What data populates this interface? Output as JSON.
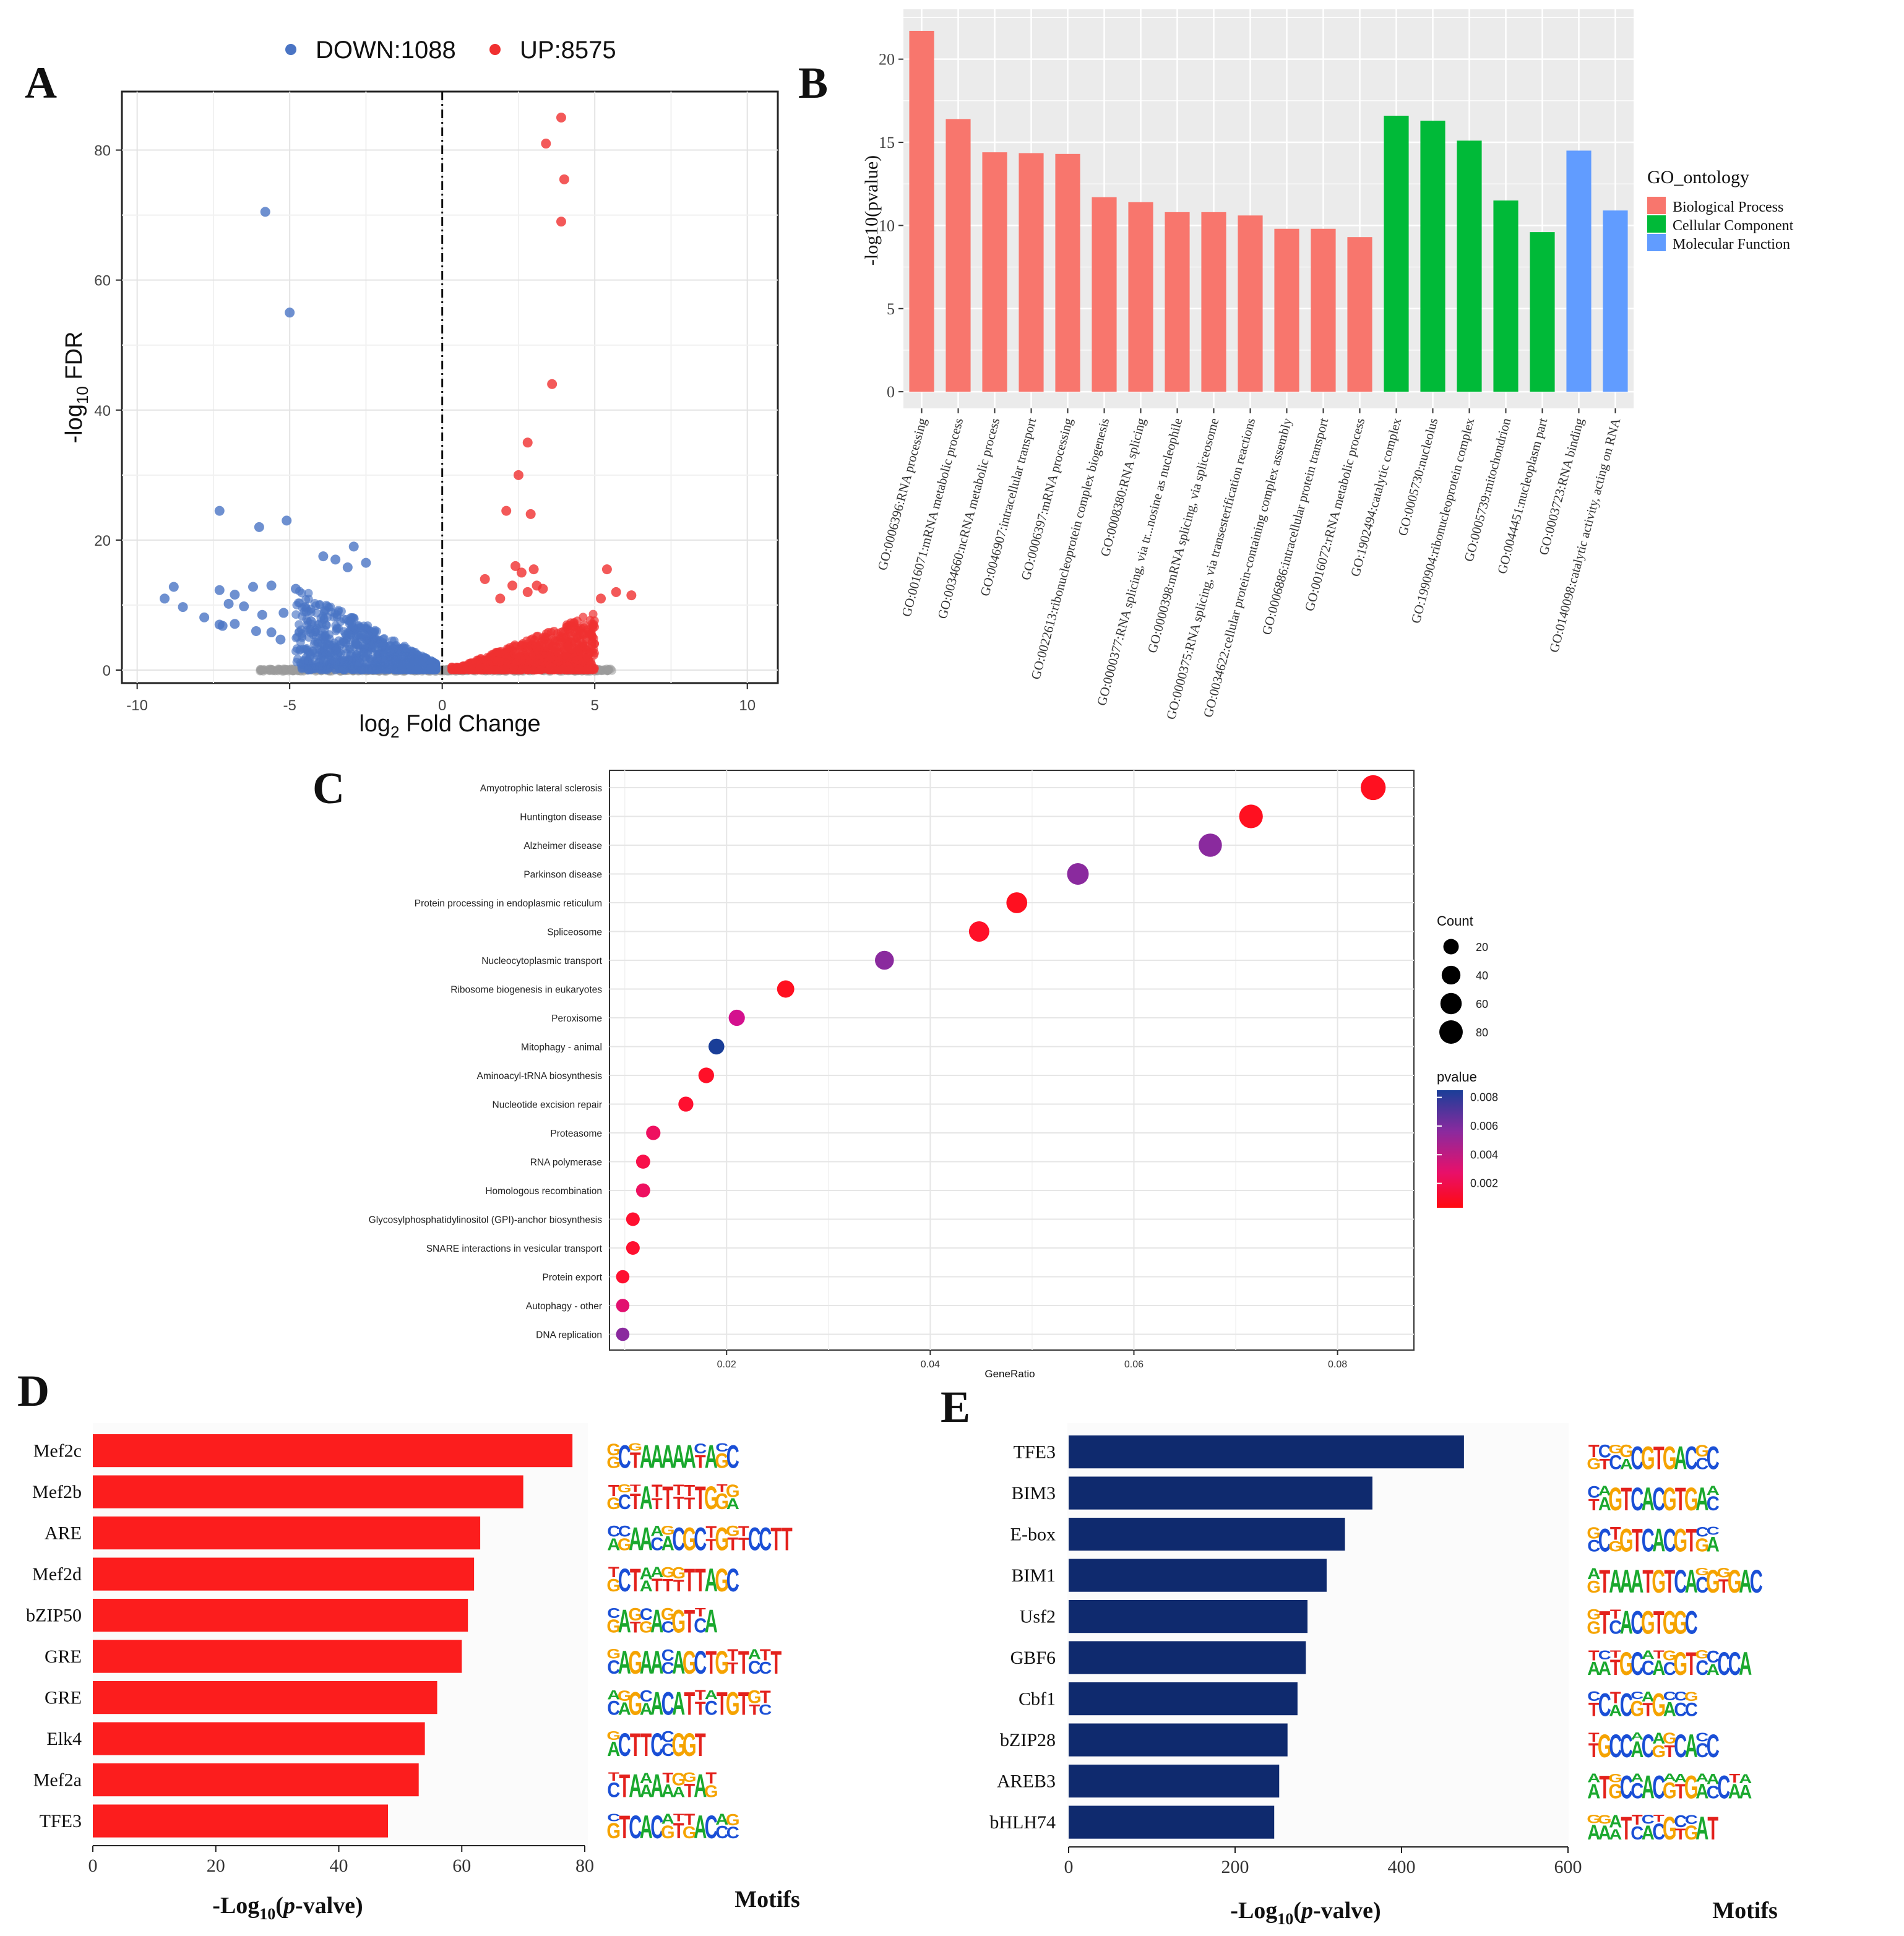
{
  "panels": {
    "A": {
      "letter": "A",
      "chart_data": {
        "type": "scatter",
        "title": "",
        "legend": [
          {
            "label": "DOWN:1088",
            "color": "#4a74c4"
          },
          {
            "label": "UP:8575",
            "color": "#f03030"
          }
        ],
        "xlabel_main": "log",
        "xlabel_sub": "2",
        "xlabel_rest": " Fold Change",
        "ylabel_main": "-log",
        "ylabel_sub": "10",
        "ylabel_rest": " FDR",
        "xlim": [
          -10.5,
          11
        ],
        "ylim": [
          -2,
          89
        ],
        "xticks": [
          -10,
          -5,
          0,
          5,
          10
        ],
        "xtick_labels": [
          "-10",
          "-5",
          "0",
          "5",
          "10"
        ],
        "yticks": [
          0,
          20,
          40,
          60,
          80
        ],
        "down_color": "#4a74c4",
        "up_color": "#f03030",
        "ns_color": "#9a9a9a",
        "highlight_up": [
          [
            3.9,
            85
          ],
          [
            3.4,
            81
          ],
          [
            4.0,
            75.5
          ],
          [
            3.9,
            69
          ],
          [
            3.6,
            44
          ],
          [
            2.8,
            35
          ],
          [
            2.5,
            30
          ],
          [
            2.9,
            24
          ],
          [
            2.1,
            24.5
          ],
          [
            2.4,
            16
          ],
          [
            3.0,
            15.5
          ],
          [
            2.6,
            15
          ],
          [
            5.4,
            15.5
          ],
          [
            1.4,
            14
          ],
          [
            3.1,
            13
          ],
          [
            2.3,
            13
          ],
          [
            5.7,
            12
          ],
          [
            6.2,
            11.5
          ],
          [
            3.3,
            12.5
          ],
          [
            2.8,
            12
          ],
          [
            1.9,
            11
          ],
          [
            5.2,
            11
          ]
        ],
        "highlight_down": [
          [
            -5.8,
            70.5
          ],
          [
            -5.0,
            55
          ],
          [
            -7.3,
            24.5
          ],
          [
            -6.0,
            22
          ],
          [
            -5.1,
            23
          ],
          [
            -2.9,
            19
          ],
          [
            -3.9,
            17.5
          ],
          [
            -3.5,
            17
          ],
          [
            -2.5,
            16.5
          ],
          [
            -3.1,
            15.8
          ],
          [
            -8.8,
            12.8
          ],
          [
            -7.3,
            12.3
          ],
          [
            -6.8,
            11.6
          ],
          [
            -6.2,
            12.8
          ],
          [
            -5.6,
            13
          ],
          [
            -4.8,
            12.5
          ],
          [
            -9.1,
            11
          ],
          [
            -8.5,
            9.7
          ],
          [
            -7.0,
            10.2
          ],
          [
            -6.5,
            9.8
          ],
          [
            -5.9,
            8.5
          ],
          [
            -7.8,
            8.1
          ],
          [
            -7.2,
            6.8
          ],
          [
            -6.1,
            6
          ],
          [
            -5.6,
            5.8
          ],
          [
            -5.3,
            4.7
          ],
          [
            -4.3,
            7.5
          ],
          [
            -5.2,
            8.8
          ],
          [
            -6.8,
            7.1
          ],
          [
            -7.3,
            7
          ]
        ]
      }
    },
    "B": {
      "letter": "B",
      "chart_data": {
        "type": "bar",
        "ylabel": "-log10(pvalue)",
        "ylim": [
          -1,
          23
        ],
        "yticks": [
          0,
          5,
          10,
          15,
          20
        ],
        "legend_title": "GO_ontology",
        "legend": [
          {
            "label": "Biological Process",
            "color": "#f8766d"
          },
          {
            "label": "Cellular Component",
            "color": "#00ba38"
          },
          {
            "label": "Molecular Function",
            "color": "#619cff"
          }
        ],
        "categories": [
          "GO:0006396:RNA processing",
          "GO:0016071:mRNA metabolic process",
          "GO:0034660:ncRNA metabolic process",
          "GO:0046907:intracellular transport",
          "GO:0006397:mRNA processing",
          "GO:0022613:ribonucleoprotein complex biogenesis",
          "GO:0008380:RNA splicing",
          "GO:0000377:RNA splicing, via tr...nosine as nucleophile",
          "GO:0000398:mRNA splicing, via spliceosome",
          "GO:0000375:RNA splicing, via transesterification reactions",
          "GO:0034622:cellular protein-containing complex assembly",
          "GO:0006886:intracellular protein transport",
          "GO:0016072:rRNA metabolic process",
          "GO:1902494:catalytic complex",
          "GO:0005730:nucleolus",
          "GO:1990904:ribonucleoprotein complex",
          "GO:0005739:mitochondrion",
          "GO:0044451:nucleoplasm part",
          "GO:0003723:RNA binding",
          "GO:0140098:catalytic activity, acting on RNA"
        ],
        "values": [
          21.7,
          16.4,
          14.4,
          14.35,
          14.3,
          11.7,
          11.4,
          10.8,
          10.8,
          10.6,
          9.8,
          9.8,
          9.3,
          16.6,
          16.3,
          15.1,
          11.5,
          9.6,
          14.5,
          10.9
        ],
        "groups": [
          "BP",
          "BP",
          "BP",
          "BP",
          "BP",
          "BP",
          "BP",
          "BP",
          "BP",
          "BP",
          "BP",
          "BP",
          "BP",
          "CC",
          "CC",
          "CC",
          "CC",
          "CC",
          "MF",
          "MF"
        ]
      }
    },
    "C": {
      "letter": "C",
      "chart_data": {
        "type": "scatter",
        "xlabel": "GeneRatio",
        "xlim": [
          0.0085,
          0.0875
        ],
        "xticks": [
          0.02,
          0.04,
          0.06,
          0.08
        ],
        "xtick_labels": [
          "0.02",
          "0.04",
          "0.06",
          "0.08"
        ],
        "size_legend_title": "Count",
        "size_legend": [
          20,
          40,
          60,
          80
        ],
        "color_legend_title": "pvalue",
        "color_legend_ticks": [
          "0.008",
          "0.006",
          "0.004",
          "0.002"
        ],
        "color_legend_values": [
          0.008,
          0.006,
          0.004,
          0.002
        ],
        "terms": [
          {
            "name": "Amyotrophic lateral sclerosis",
            "ratio": 0.0835,
            "count": 95,
            "color": "#ff1020"
          },
          {
            "name": "Huntington disease",
            "ratio": 0.0715,
            "count": 82,
            "color": "#ff1020"
          },
          {
            "name": "Alzheimer disease",
            "ratio": 0.0675,
            "count": 78,
            "color": "#8a2a9e"
          },
          {
            "name": "Parkinson disease",
            "ratio": 0.0545,
            "count": 63,
            "color": "#8a2a9e"
          },
          {
            "name": "Protein processing in endoplasmic reticulum",
            "ratio": 0.0485,
            "count": 56,
            "color": "#ff1020"
          },
          {
            "name": "Spliceosome",
            "ratio": 0.0448,
            "count": 52,
            "color": "#ff1028"
          },
          {
            "name": "Nucleocytoplasmic transport",
            "ratio": 0.0355,
            "count": 41,
            "color": "#8a2a9e"
          },
          {
            "name": "Ribosome biogenesis in eukaryotes",
            "ratio": 0.0258,
            "count": 30,
            "color": "#ff1020"
          },
          {
            "name": "Peroxisome",
            "ratio": 0.021,
            "count": 24,
            "color": "#d4108e"
          },
          {
            "name": "Mitophagy - animal",
            "ratio": 0.019,
            "count": 22,
            "color": "#1a3e98"
          },
          {
            "name": "Aminoacyl-tRNA biosynthesis",
            "ratio": 0.018,
            "count": 21,
            "color": "#ff1028"
          },
          {
            "name": "Nucleotide excision repair",
            "ratio": 0.016,
            "count": 18,
            "color": "#ff1030"
          },
          {
            "name": "Proteasome",
            "ratio": 0.0128,
            "count": 15,
            "color": "#ee1060"
          },
          {
            "name": "RNA polymerase",
            "ratio": 0.0118,
            "count": 14,
            "color": "#f8104a"
          },
          {
            "name": "Homologous recombination",
            "ratio": 0.0118,
            "count": 14,
            "color": "#ee1060"
          },
          {
            "name": "Glycosylphosphatidylinositol (GPI)-anchor biosynthesis",
            "ratio": 0.0108,
            "count": 12,
            "color": "#ff1030"
          },
          {
            "name": "SNARE interactions in vesicular transport",
            "ratio": 0.0108,
            "count": 12,
            "color": "#ff1030"
          },
          {
            "name": "Protein export",
            "ratio": 0.0098,
            "count": 11,
            "color": "#ff1030"
          },
          {
            "name": "Autophagy - other",
            "ratio": 0.0098,
            "count": 11,
            "color": "#e21070"
          },
          {
            "name": "DNA replication",
            "ratio": 0.0098,
            "count": 11,
            "color": "#8a2a9e"
          }
        ]
      }
    },
    "D": {
      "letter": "D",
      "chart_data": {
        "type": "bar",
        "orientation": "horizontal",
        "xlabel_pre": "-Log",
        "xlabel_sub": "10",
        "xlabel_italic": "p",
        "xlabel_post": "-valve)",
        "xlabel_open": "(",
        "motif_title": "Motifs",
        "xlim": [
          0,
          80
        ],
        "xticks": [
          0,
          20,
          40,
          60,
          80
        ],
        "bar_color": "#fc1d1d",
        "categories": [
          "Mef2c",
          "Mef2b",
          "ARE",
          "Mef2d",
          "bZIP50",
          "GRE",
          "GRE",
          "Elk4",
          "Mef2a",
          "TFE3"
        ],
        "values": [
          78,
          70,
          63,
          62,
          61,
          60,
          56,
          54,
          53,
          48
        ],
        "motifs": [
          "GCTAAAAATAGC",
          "GCTATTTTTGGA",
          "AGAACACGCTGTTCCTT",
          "GCTATTTTTAGC",
          "GATGACGTCA",
          "CAGAACAGCTGTTCCT",
          "CAGAACATTCTGTTC",
          "ACTTCCGGT",
          "CTAAAAATAG",
          "GTCACGTGACCC"
        ]
      }
    },
    "E": {
      "letter": "E",
      "chart_data": {
        "type": "bar",
        "orientation": "horizontal",
        "xlabel_pre": "-Log",
        "xlabel_sub": "10",
        "xlabel_italic": "p",
        "xlabel_post": "-valve)",
        "xlabel_open": "(",
        "motif_title": "Motifs",
        "xlim": [
          0,
          600
        ],
        "xticks": [
          0,
          200,
          400,
          600
        ],
        "bar_color": "#0f2a6e",
        "categories": [
          "TFE3",
          "BIM3",
          "E-box",
          "BIM1",
          "Usf2",
          "GBF6",
          "Cbf1",
          "bZIP28",
          "AREB3",
          "bHLH74"
        ],
        "values": [
          475,
          365,
          332,
          310,
          287,
          285,
          275,
          263,
          253,
          247
        ],
        "motifs": [
          "GTCACGTGACCC",
          "TAGTCACGTGAC",
          "CCGGTCACGTGA",
          "GTAAATGTCACGTGAC",
          "GTCACGTGGC",
          "AATGCCACGTCACCA",
          "TCACGTGACC",
          "TGCCACGTCACC",
          "ATGCCACGTGACCAA",
          "AAATCACGTGAT"
        ]
      }
    }
  }
}
